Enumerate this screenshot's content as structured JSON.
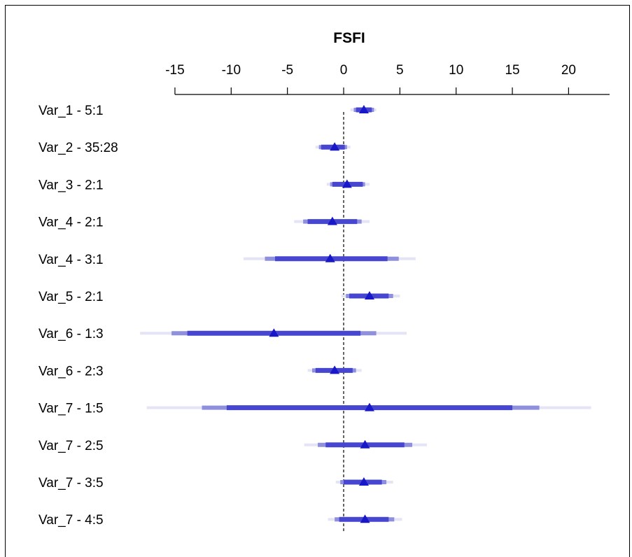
{
  "chart_data": {
    "type": "forest",
    "title": "FSFI",
    "xlim": [
      -15,
      23
    ],
    "x_ticks": [
      -15,
      -10,
      -5,
      0,
      5,
      10,
      15,
      20
    ],
    "reference_line": 0,
    "marker": "triangle",
    "colors": {
      "outer": "#e4e4f6",
      "middle": "#8f8fdf",
      "inner": "#4646d0",
      "point": "#1818c8",
      "reference": "#000000"
    },
    "rows": [
      {
        "label": "Var_1 - 5:1",
        "point": 1.8,
        "outer": [
          0.6,
          2.9
        ],
        "middle": [
          0.9,
          2.7
        ],
        "inner": [
          1.1,
          2.5
        ]
      },
      {
        "label": "Var_2 - 35:28",
        "point": -0.8,
        "outer": [
          -2.5,
          0.6
        ],
        "middle": [
          -2.2,
          0.3
        ],
        "inner": [
          -2.0,
          0.1
        ]
      },
      {
        "label": "Var_3 - 2:1",
        "point": 0.3,
        "outer": [
          -1.5,
          2.3
        ],
        "middle": [
          -1.2,
          1.9
        ],
        "inner": [
          -1.0,
          1.7
        ]
      },
      {
        "label": "Var_4 - 2:1",
        "point": -1.0,
        "outer": [
          -4.4,
          2.3
        ],
        "middle": [
          -3.6,
          1.6
        ],
        "inner": [
          -3.2,
          1.2
        ]
      },
      {
        "label": "Var_4 - 3:1",
        "point": -1.2,
        "outer": [
          -8.9,
          6.4
        ],
        "middle": [
          -7.0,
          4.9
        ],
        "inner": [
          -6.1,
          3.9
        ]
      },
      {
        "label": "Var_5 - 2:1",
        "point": 2.3,
        "outer": [
          -0.2,
          5.0
        ],
        "middle": [
          0.2,
          4.4
        ],
        "inner": [
          0.5,
          4.0
        ]
      },
      {
        "label": "Var_6 - 1:3",
        "point": -6.2,
        "outer": [
          -18.1,
          5.6
        ],
        "middle": [
          -15.3,
          2.9
        ],
        "inner": [
          -13.9,
          1.5
        ]
      },
      {
        "label": "Var_6 - 2:3",
        "point": -0.8,
        "outer": [
          -3.2,
          1.6
        ],
        "middle": [
          -2.8,
          1.1
        ],
        "inner": [
          -2.5,
          0.8
        ]
      },
      {
        "label": "Var_7 - 1:5",
        "point": 2.3,
        "outer": [
          -17.5,
          22.0
        ],
        "middle": [
          -12.6,
          17.4
        ],
        "inner": [
          -10.4,
          15.0
        ]
      },
      {
        "label": "Var_7 - 2:5",
        "point": 1.9,
        "outer": [
          -3.5,
          7.4
        ],
        "middle": [
          -2.3,
          6.1
        ],
        "inner": [
          -1.6,
          5.4
        ]
      },
      {
        "label": "Var_7 - 3:5",
        "point": 1.8,
        "outer": [
          -0.7,
          4.4
        ],
        "middle": [
          -0.3,
          3.8
        ],
        "inner": [
          0.0,
          3.4
        ]
      },
      {
        "label": "Var_7 - 4:5",
        "point": 1.9,
        "outer": [
          -1.4,
          5.2
        ],
        "middle": [
          -0.8,
          4.5
        ],
        "inner": [
          -0.4,
          4.0
        ]
      }
    ]
  }
}
